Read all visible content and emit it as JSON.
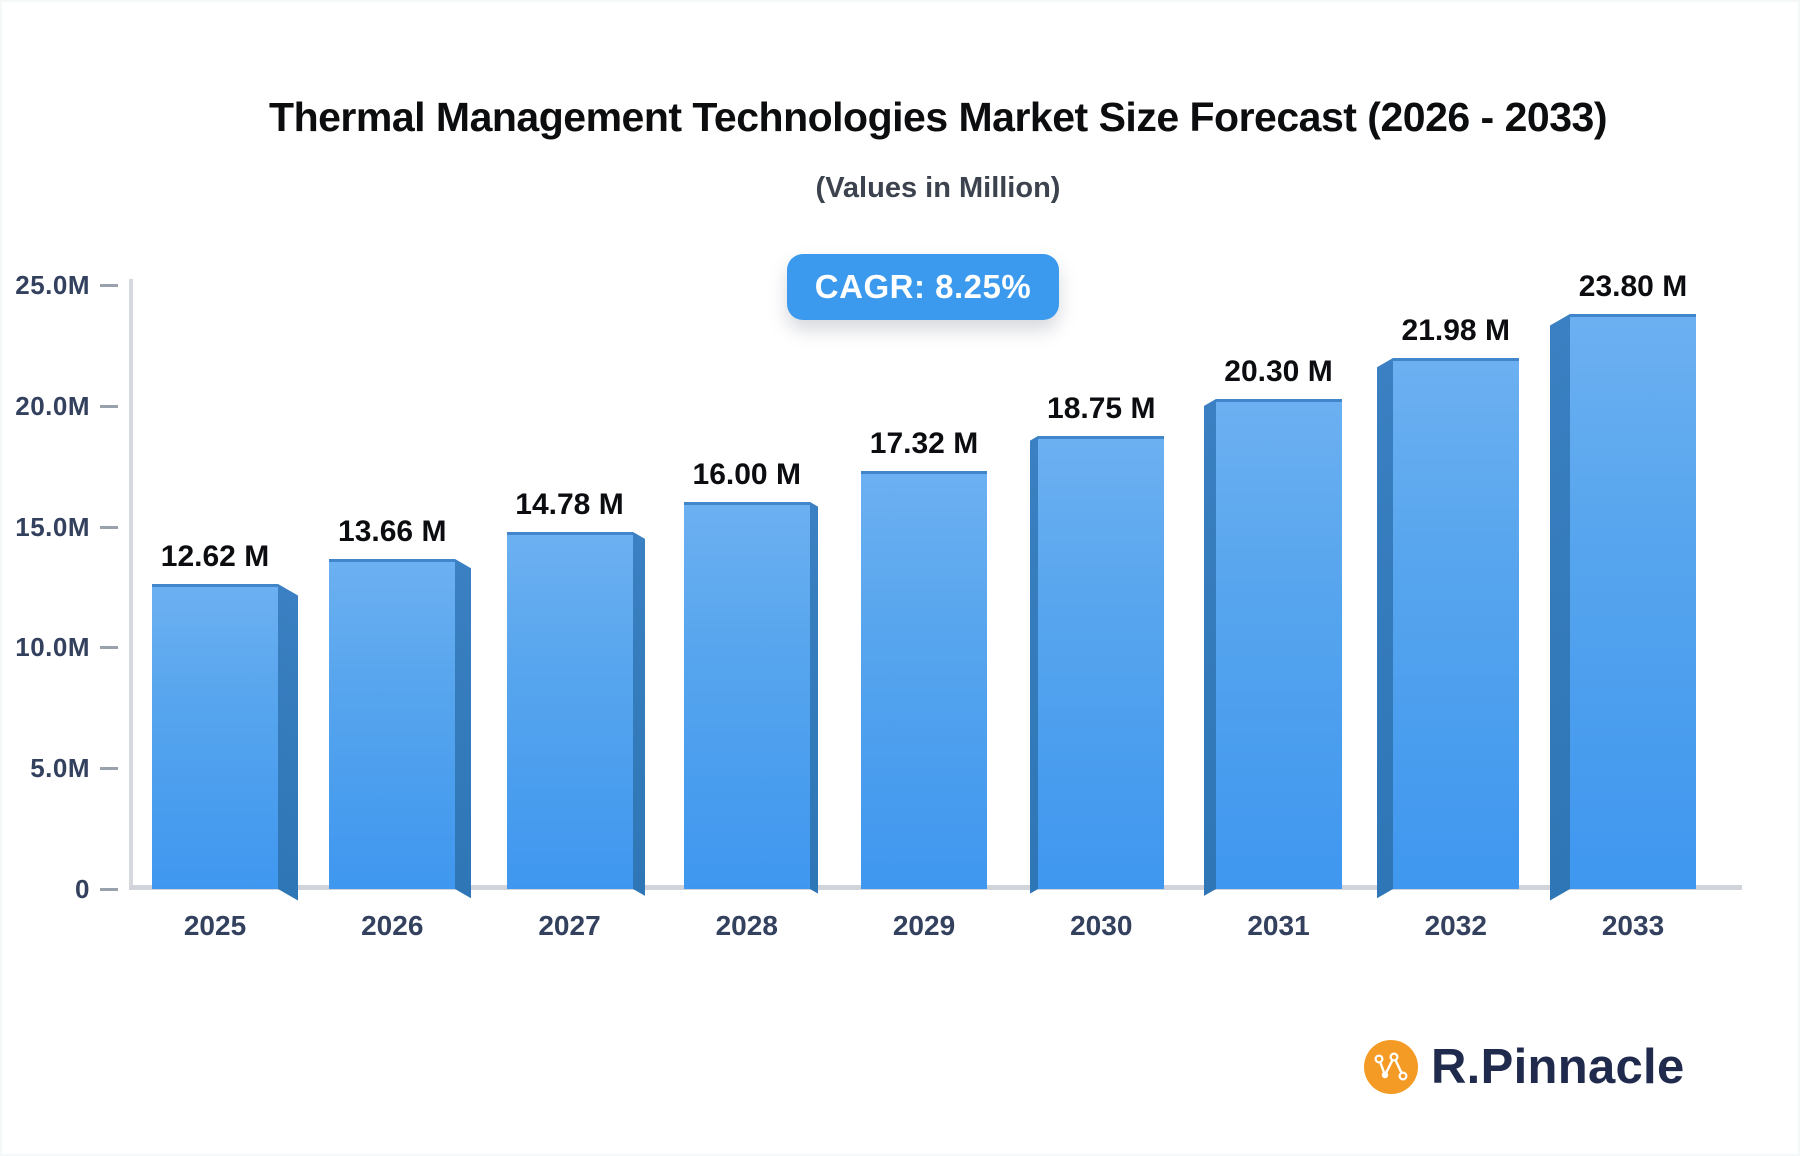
{
  "title": "Thermal Management Technologies Market Size Forecast (2026 - 2033)",
  "subtitle": "(Values in Million)",
  "cagr_badge": "CAGR: 8.25%",
  "brand": {
    "name": "R.Pinnacle",
    "icon": "network-nodes-icon",
    "icon_bg_color": "#F49B25",
    "text_color": "#1F2A4D"
  },
  "colors": {
    "bar_face_top": "#6CB0F1",
    "bar_face_bottom": "#3F97EF",
    "bar_side": "#2E76B5",
    "badge_bg": "#3B9AED",
    "axis_line": "#D3D6DB",
    "tick_label": "#33415E",
    "value_label": "#0C0D10",
    "title": "#0C0D0F"
  },
  "chart_data": {
    "type": "bar",
    "title": "Thermal Management Technologies Market Size Forecast (2026 - 2033)",
    "subtitle": "(Values in Million)",
    "annotation": "CAGR: 8.25%",
    "categories": [
      "2025",
      "2026",
      "2027",
      "2028",
      "2029",
      "2030",
      "2031",
      "2032",
      "2033"
    ],
    "values": [
      12.62,
      13.66,
      14.78,
      16.0,
      17.32,
      18.75,
      20.3,
      21.98,
      23.8
    ],
    "labels": [
      "12.62 M",
      "13.66 M",
      "14.78 M",
      "16.00 M",
      "17.32 M",
      "18.75 M",
      "20.30 M",
      "21.98 M",
      "23.80 M"
    ],
    "unit": "Million",
    "xlabel": "",
    "ylabel": "",
    "ylim": [
      0,
      25
    ],
    "ytick_values": [
      0,
      5,
      10,
      15,
      20,
      25
    ],
    "ytick_labels": [
      "0",
      "5.0M",
      "10.0M",
      "15.0M",
      "20.0M",
      "25.0M"
    ],
    "grid": false,
    "legend": "none",
    "style": "pseudo-3d bars, center vanishing point"
  }
}
